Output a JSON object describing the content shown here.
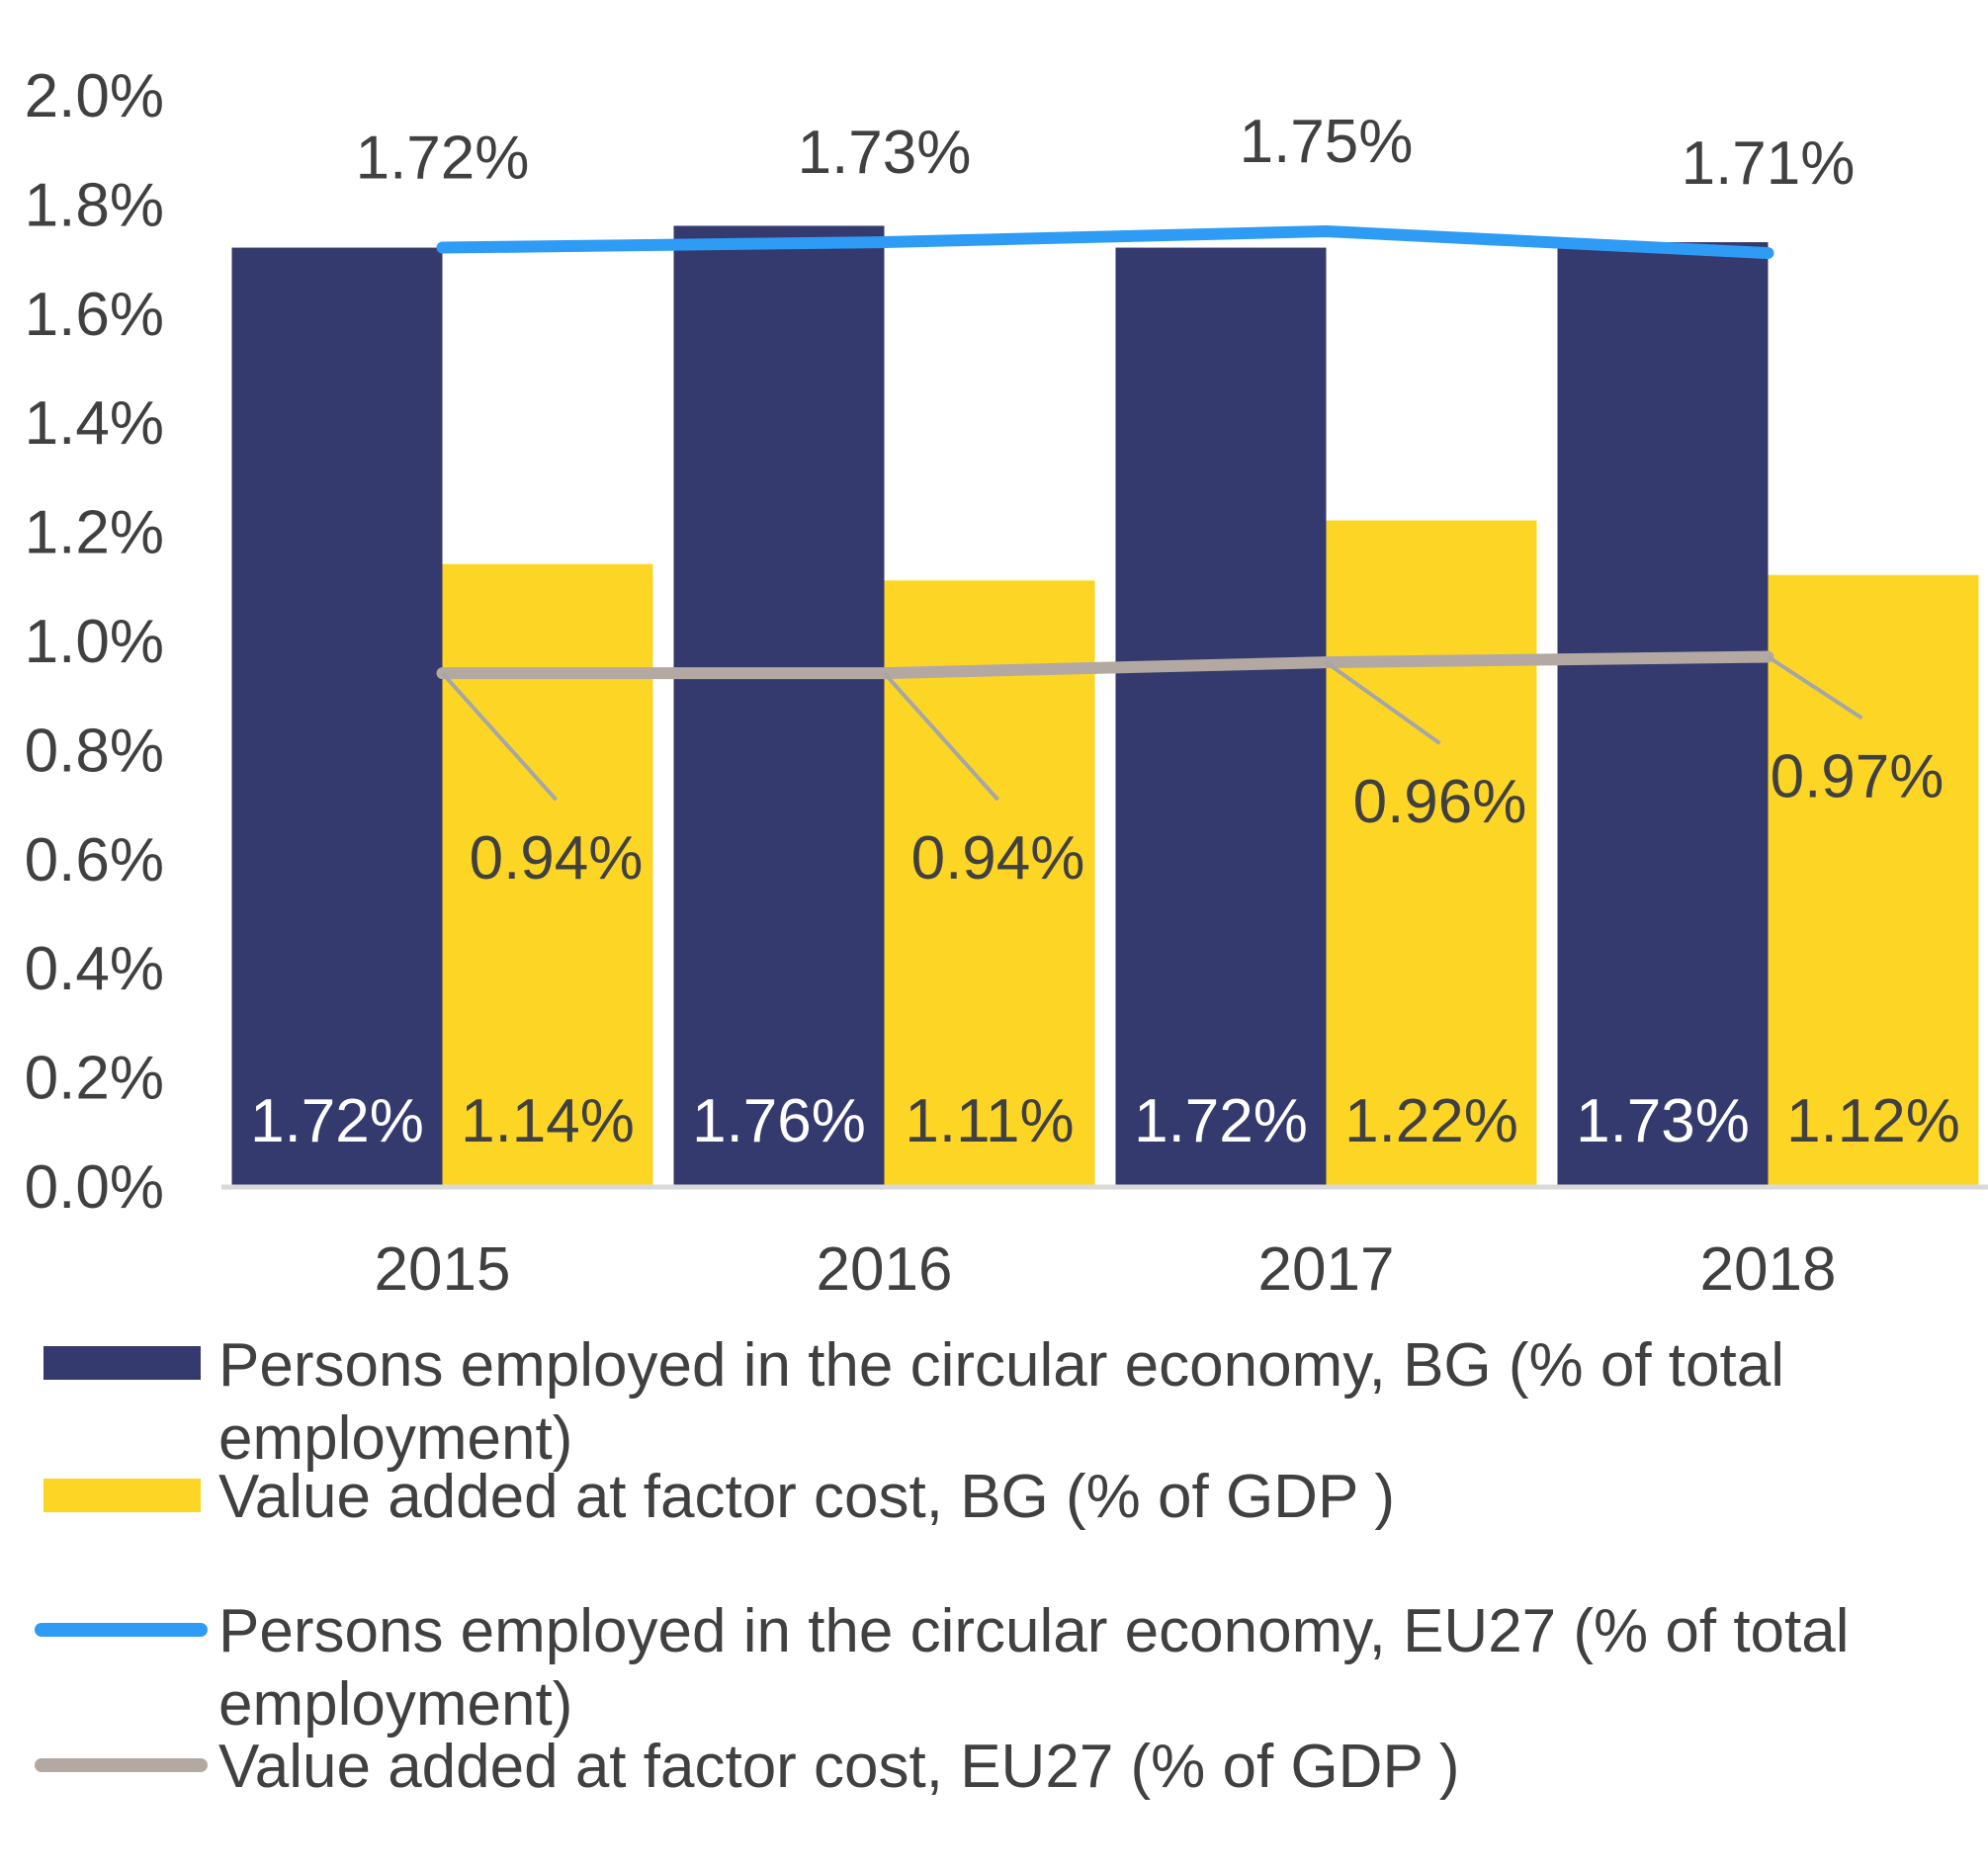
{
  "chart_data": {
    "type": "bar",
    "categories": [
      "2015",
      "2016",
      "2017",
      "2018"
    ],
    "ylim": [
      0,
      2.0
    ],
    "yticks": [
      "0.0%",
      "0.2%",
      "0.4%",
      "0.6%",
      "0.8%",
      "1.0%",
      "1.2%",
      "1.4%",
      "1.6%",
      "1.8%",
      "2.0%"
    ],
    "grid": false,
    "legend_placement": "bottom",
    "series": [
      {
        "name": "Persons employed in the circular economy, BG (% of total employment)",
        "kind": "bar",
        "color": "#353A6E",
        "values": [
          1.72,
          1.76,
          1.72,
          1.73
        ],
        "labels": [
          "1.72%",
          "1.76%",
          "1.72%",
          "1.73%"
        ]
      },
      {
        "name": "Value added at factor cost, BG (% of GDP )",
        "kind": "bar",
        "color": "#FDD625",
        "values": [
          1.14,
          1.11,
          1.22,
          1.12
        ],
        "labels": [
          "1.14%",
          "1.11%",
          "1.22%",
          "1.12%"
        ]
      },
      {
        "name": "Persons employed in the circular economy, EU27 (% of total employment)",
        "kind": "line",
        "color": "#2E9BF5",
        "values": [
          1.72,
          1.73,
          1.75,
          1.71
        ],
        "labels": [
          "1.72%",
          "1.73%",
          "1.75%",
          "1.71%"
        ]
      },
      {
        "name": "Value added at factor cost, EU27 (% of GDP )",
        "kind": "line",
        "color": "#B4A9A2",
        "values": [
          0.94,
          0.94,
          0.96,
          0.97
        ],
        "labels": [
          "0.94%",
          "0.94%",
          "0.96%",
          "0.97%"
        ]
      }
    ]
  },
  "legend": [
    {
      "lines": [
        "Persons employed in the circular economy, BG (% of total",
        "employment)"
      ]
    },
    {
      "lines": [
        "Value added at factor cost, BG (% of GDP )"
      ]
    },
    {
      "lines": [
        "Persons employed in the circular economy, EU27 (% of total",
        "employment)"
      ]
    },
    {
      "lines": [
        "Value added at factor cost, EU27 (% of GDP )"
      ]
    }
  ]
}
